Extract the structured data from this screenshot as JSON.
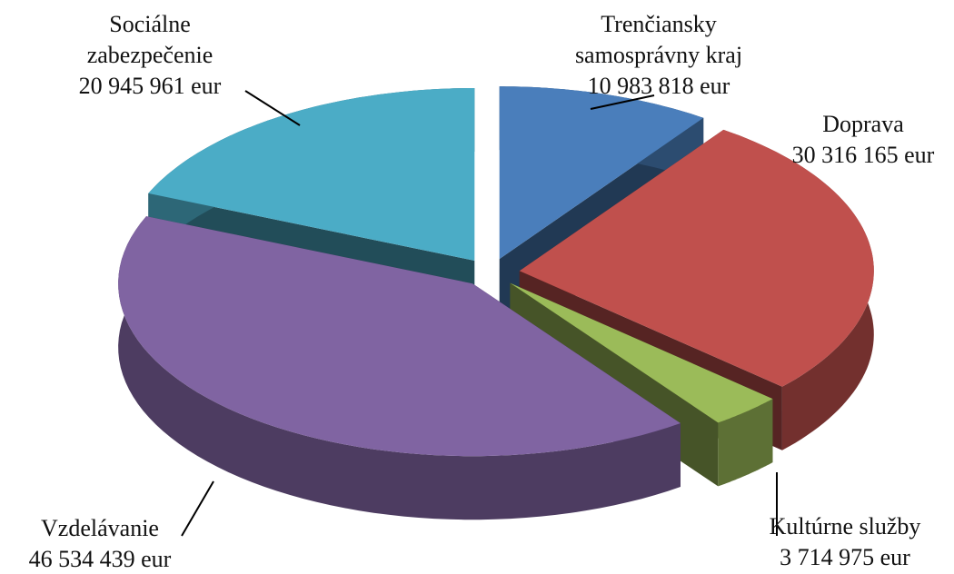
{
  "chart_data": {
    "type": "pie",
    "categories": [
      "Trenčiansky samosprávny kraj",
      "Doprava",
      "Kultúrne služby",
      "Vzdelávanie",
      "Sociálne zabezpečenie"
    ],
    "values": [
      10983818,
      30316165,
      3714975,
      46534439,
      20945961
    ],
    "value_labels": [
      "10 983 818 eur",
      "30 316 165 eur",
      "3 714 975 eur",
      "46 534 439 eur",
      "20 945 961 eur"
    ],
    "colors": [
      "#4a7ebb",
      "#c0504d",
      "#9bbb59",
      "#8064a2",
      "#4bacc6"
    ]
  }
}
